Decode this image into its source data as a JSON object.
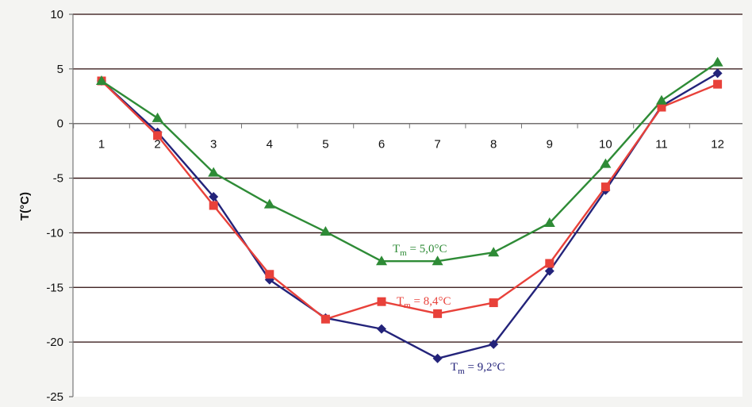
{
  "chart_data": {
    "type": "line",
    "ylabel": "T(°C)",
    "xlabel": "",
    "x": [
      1,
      2,
      3,
      4,
      5,
      6,
      7,
      8,
      9,
      10,
      11,
      12
    ],
    "x_tick_labels": [
      "1",
      "2",
      "3",
      "4",
      "5",
      "6",
      "7",
      "8",
      "9",
      "10",
      "11",
      "12"
    ],
    "y_tick_labels": [
      "10",
      "5",
      "0",
      "-5",
      "-10",
      "-15",
      "-20",
      "-25"
    ],
    "ylim": [
      -25,
      10
    ],
    "grid": "horizontal",
    "series": [
      {
        "color": "#23237a",
        "marker": "diamond",
        "values": [
          3.9,
          -0.8,
          -6.7,
          -14.3,
          -17.8,
          -18.8,
          -21.5,
          -20.2,
          -13.5,
          -6.1,
          1.6,
          4.6
        ],
        "annotation": {
          "T": "T",
          "m": "m",
          "rest": " = 9,2°C"
        }
      },
      {
        "color": "#e8413a",
        "marker": "square",
        "values": [
          3.9,
          -1.1,
          -7.5,
          -13.8,
          -17.9,
          -16.3,
          -17.4,
          -16.4,
          -12.8,
          -5.8,
          1.5,
          3.6
        ],
        "annotation": {
          "T": "T",
          "m": "m",
          "rest": " = 8,4°C"
        }
      },
      {
        "color": "#2e8b36",
        "marker": "triangle",
        "values": [
          3.9,
          0.5,
          -4.5,
          -7.4,
          -9.9,
          -12.6,
          -12.6,
          -11.8,
          -9.1,
          -3.7,
          2.1,
          5.6
        ],
        "annotation": {
          "T": "T",
          "m": "m",
          "rest": " = 5,0°C"
        }
      }
    ]
  }
}
